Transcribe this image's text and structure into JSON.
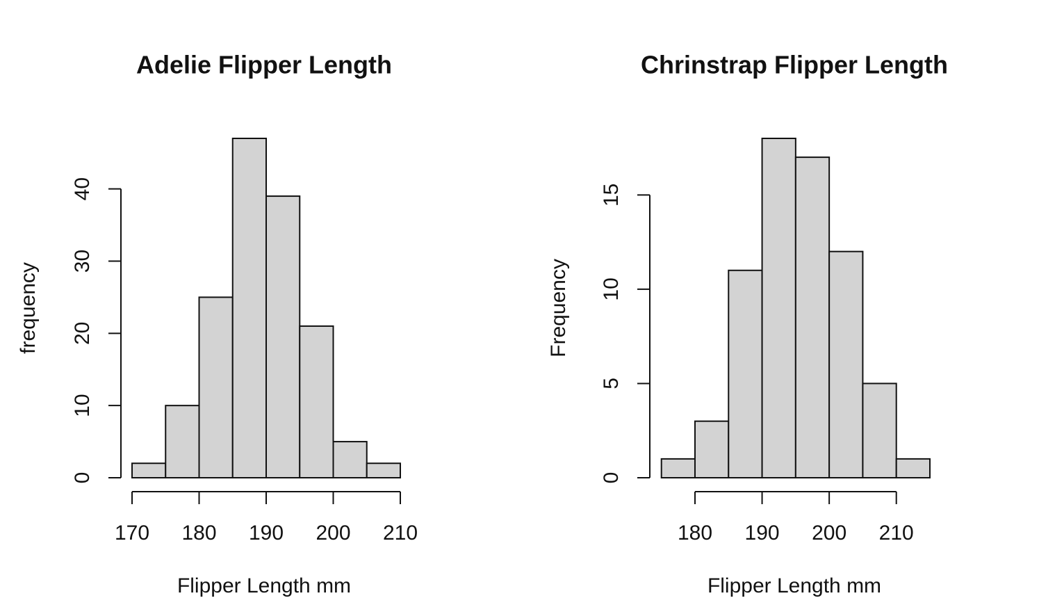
{
  "chart_data": [
    {
      "type": "histogram",
      "title": "Adelie Flipper Length",
      "xlabel": "Flipper Length mm",
      "ylabel": "frequency",
      "bins": [
        170,
        175,
        180,
        185,
        190,
        195,
        200,
        205,
        210
      ],
      "values": [
        2,
        10,
        25,
        47,
        39,
        21,
        5,
        2
      ],
      "color": "#d3d3d3",
      "xlim": [
        170,
        210
      ],
      "ylim": [
        0,
        47
      ],
      "xticks": [
        170,
        180,
        190,
        200,
        210
      ],
      "yticks": [
        0,
        10,
        20,
        30,
        40
      ]
    },
    {
      "type": "histogram",
      "title": "Chrinstrap Flipper Length",
      "xlabel": "Flipper Length mm",
      "ylabel": "Frequency",
      "bins": [
        175,
        180,
        185,
        190,
        195,
        200,
        205,
        210,
        215
      ],
      "values": [
        1,
        3,
        11,
        18,
        17,
        12,
        5,
        1
      ],
      "color": "#d3d3d3",
      "xlim": [
        175,
        215
      ],
      "ylim": [
        0,
        18
      ],
      "xticks": [
        180,
        190,
        200,
        210
      ],
      "yticks": [
        0,
        5,
        10,
        15
      ]
    }
  ]
}
